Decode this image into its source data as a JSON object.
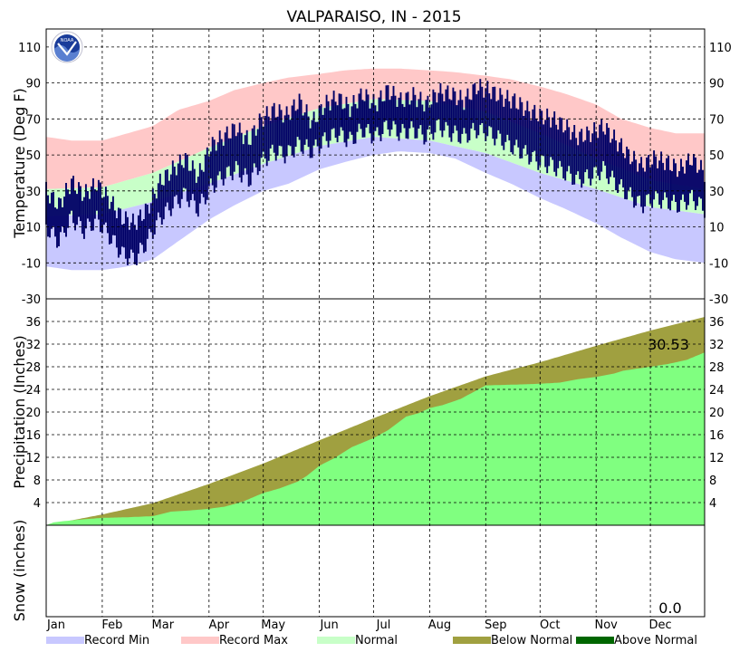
{
  "chart_data": {
    "type": "area",
    "title": "VALPARAISO, IN - 2015",
    "x_months": [
      "Jan",
      "Feb",
      "Mar",
      "Apr",
      "May",
      "Jun",
      "Jul",
      "Aug",
      "Sep",
      "Oct",
      "Nov",
      "Dec"
    ],
    "panels": [
      {
        "id": "temperature",
        "ylabel": "Temperature (Deg F)",
        "ylim": [
          -30,
          120
        ],
        "yticks": [
          "110",
          "90",
          "70",
          "50",
          "30",
          "10",
          "-10",
          "-30"
        ],
        "grid": true,
        "series": [
          {
            "name": "Record Max",
            "color": "#ffc8c8",
            "x": [
              1,
              15,
              32,
              46,
              60,
              74,
              91,
              105,
              121,
              135,
              152,
              166,
              182,
              196,
              213,
              227,
              244,
              258,
              274,
              288,
              305,
              319,
              335,
              349,
              365
            ],
            "y": [
              60,
              58,
              58,
              62,
              66,
              75,
              80,
              86,
              90,
              93,
              95,
              97,
              98,
              98,
              97,
              96,
              94,
              92,
              88,
              84,
              78,
              70,
              65,
              62,
              62
            ]
          },
          {
            "name": "Normal High",
            "color": "#c8ffc8",
            "x": [
              1,
              32,
              60,
              91,
              121,
              152,
              182,
              213,
              244,
              274,
              305,
              335,
              365
            ],
            "y": [
              31,
              32,
              40,
              54,
              66,
              76,
              81,
              80,
              74,
              62,
              48,
              36,
              31
            ]
          },
          {
            "name": "Normal Low",
            "color": "#c8ffc8",
            "x": [
              1,
              32,
              60,
              91,
              121,
              152,
              182,
              213,
              244,
              274,
              305,
              335,
              365
            ],
            "y": [
              16,
              17,
              24,
              34,
              45,
              55,
              60,
              58,
              51,
              40,
              31,
              21,
              17
            ]
          },
          {
            "name": "Record Min",
            "color": "#c8c8ff",
            "x": [
              1,
              15,
              32,
              46,
              60,
              74,
              91,
              105,
              121,
              135,
              152,
              166,
              182,
              196,
              213,
              227,
              244,
              258,
              274,
              288,
              305,
              319,
              335,
              349,
              365
            ],
            "y": [
              -12,
              -14,
              -14,
              -12,
              -8,
              2,
              14,
              22,
              30,
              34,
              42,
              46,
              50,
              52,
              51,
              48,
              40,
              34,
              26,
              20,
              12,
              4,
              -4,
              -8,
              -10
            ]
          },
          {
            "name": "Actual High",
            "color": "#000066",
            "x": [
              1,
              8,
              15,
              22,
              29,
              36,
              43,
              50,
              57,
              64,
              71,
              78,
              85,
              92,
              99,
              106,
              113,
              120,
              127,
              134,
              141,
              148,
              155,
              162,
              169,
              176,
              183,
              190,
              197,
              204,
              211,
              218,
              225,
              232,
              239,
              246,
              253,
              260,
              267,
              274,
              281,
              288,
              295,
              302,
              309,
              316,
              323,
              330,
              337,
              344,
              351,
              358,
              365
            ],
            "y": [
              30,
              22,
              35,
              28,
              34,
              25,
              15,
              12,
              20,
              35,
              42,
              48,
              38,
              55,
              60,
              65,
              58,
              70,
              75,
              72,
              80,
              68,
              78,
              82,
              76,
              84,
              78,
              86,
              80,
              83,
              78,
              85,
              84,
              80,
              88,
              86,
              82,
              80,
              75,
              72,
              70,
              66,
              60,
              62,
              66,
              58,
              50,
              44,
              48,
              46,
              42,
              48,
              40
            ]
          },
          {
            "name": "Actual Low",
            "color": "#000066",
            "x": [
              1,
              8,
              15,
              22,
              29,
              36,
              43,
              50,
              57,
              64,
              71,
              78,
              85,
              92,
              99,
              106,
              113,
              120,
              127,
              134,
              141,
              148,
              155,
              162,
              169,
              176,
              183,
              190,
              197,
              204,
              211,
              218,
              225,
              232,
              239,
              246,
              253,
              260,
              267,
              274,
              281,
              288,
              295,
              302,
              309,
              316,
              323,
              330,
              337,
              344,
              351,
              358,
              365
            ],
            "y": [
              10,
              2,
              15,
              8,
              14,
              5,
              -5,
              -8,
              2,
              15,
              22,
              28,
              20,
              32,
              38,
              42,
              36,
              46,
              52,
              50,
              56,
              52,
              58,
              62,
              58,
              64,
              60,
              66,
              62,
              64,
              60,
              66,
              62,
              60,
              64,
              62,
              58,
              54,
              50,
              46,
              44,
              40,
              36,
              38,
              42,
              34,
              28,
              22,
              26,
              24,
              22,
              26,
              20
            ]
          }
        ]
      },
      {
        "id": "precipitation",
        "ylabel": "Precipitation (Inches)",
        "ylim": [
          0,
          40
        ],
        "yticks": [
          "36",
          "32",
          "28",
          "24",
          "20",
          "16",
          "12",
          "8",
          "4"
        ],
        "grid": true,
        "annotation": "30.53",
        "series": [
          {
            "name": "Normal",
            "color": "#a0a040",
            "x": [
              1,
              32,
              60,
              91,
              121,
              152,
              182,
              213,
              244,
              274,
              305,
              335,
              365
            ],
            "y": [
              0,
              1.9,
              3.9,
              7.3,
              10.9,
              15.0,
              18.9,
              22.8,
              26.3,
              28.8,
              31.7,
              34.4,
              36.8
            ]
          },
          {
            "name": "Actual",
            "color": "#80ff80",
            "x": [
              1,
              5,
              10,
              20,
              32,
              45,
              60,
              70,
              80,
              91,
              100,
              110,
              121,
              130,
              140,
              145,
              152,
              160,
              170,
              182,
              190,
              200,
              207,
              213,
              220,
              230,
              244,
              255,
              266,
              274,
              285,
              295,
              305,
              315,
              320,
              335,
              345,
              355,
              365
            ],
            "y": [
              0,
              0.5,
              0.7,
              1.0,
              1.3,
              1.4,
              1.6,
              2.4,
              2.6,
              2.9,
              3.3,
              4.2,
              5.7,
              6.5,
              7.7,
              8.7,
              10.5,
              11.8,
              13.8,
              15.4,
              16.8,
              19.2,
              19.8,
              20.7,
              21.2,
              22.3,
              24.7,
              24.8,
              24.9,
              25.0,
              25.2,
              25.8,
              26.2,
              26.8,
              27.3,
              28.0,
              28.5,
              29.2,
              30.53
            ]
          }
        ]
      },
      {
        "id": "snow",
        "ylabel": "Snow (inches)",
        "annotation": "0.0"
      }
    ],
    "legend": [
      {
        "name": "Record Min",
        "color": "#c8c8ff"
      },
      {
        "name": "Record Max",
        "color": "#ffc8c8"
      },
      {
        "name": "Normal",
        "color": "#c8ffc8"
      },
      {
        "name": "Below Normal",
        "color": "#a0a040"
      },
      {
        "name": "Above Normal",
        "color": "#006600"
      }
    ],
    "legend_position": "bottom"
  }
}
